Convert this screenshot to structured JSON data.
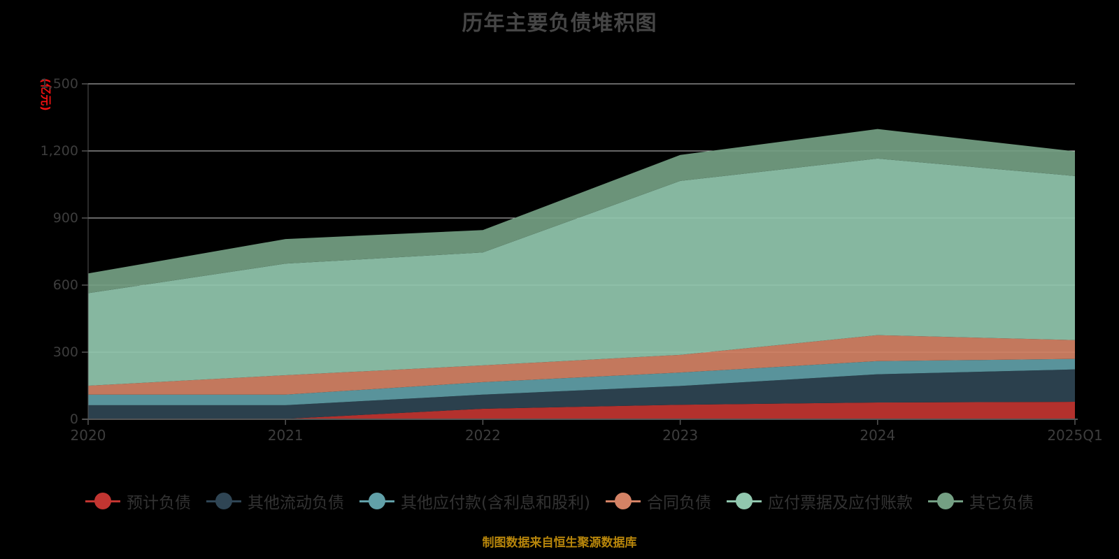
{
  "title": "历年主要负债堆积图",
  "source_note": "制图数据来自恒生聚源数据库",
  "colors": {
    "background": "#000000",
    "grid_line": "#cccccc",
    "axis_line": "#555555",
    "axis_label": "#3d3d3d",
    "title_text": "#464646",
    "legend_text": "#333333",
    "y_axis_name_text": "#ee1111",
    "source_note_text": "#b8860b"
  },
  "y_axis": {
    "name": "(亿元)",
    "tick_labels": [
      "0",
      "300",
      "600",
      "900",
      "1,200",
      "1,500"
    ],
    "min": 0,
    "max": 1500
  },
  "x_axis": {
    "tick_labels": [
      "2020",
      "2021",
      "2022",
      "2023",
      "2024",
      "2025Q1"
    ]
  },
  "chart_data": {
    "type": "area",
    "stacked": true,
    "title": "历年主要负债堆积图",
    "xlabel": "",
    "ylabel": "(亿元)",
    "ylim": [
      0,
      1500
    ],
    "grid": "horizontal",
    "legend_position": "bottom",
    "categories": [
      "2020",
      "2021",
      "2022",
      "2023",
      "2024",
      "2025Q1"
    ],
    "series": [
      {
        "name": "预计负债",
        "color": "#c23531",
        "values": [
          1,
          2,
          47,
          65,
          75,
          78
        ]
      },
      {
        "name": "其他流动负债",
        "color": "#2f4554",
        "values": [
          62,
          61,
          63,
          84,
          126,
          145
        ]
      },
      {
        "name": "其他应付款(含利息和股利)",
        "color": "#61a0a8",
        "values": [
          47,
          47,
          56,
          60,
          59,
          47
        ]
      },
      {
        "name": "合同负债",
        "color": "#d48265",
        "values": [
          40,
          87,
          75,
          79,
          116,
          84
        ]
      },
      {
        "name": "应付票据及应付账款",
        "color": "#91c7ae",
        "values": [
          414,
          499,
          505,
          778,
          790,
          734
        ]
      },
      {
        "name": "其它负债",
        "color": "#749f83",
        "values": [
          88,
          110,
          100,
          116,
          132,
          110
        ]
      }
    ],
    "stacked_totals": [
      652,
      806,
      846,
      1182,
      1298,
      1198
    ]
  }
}
